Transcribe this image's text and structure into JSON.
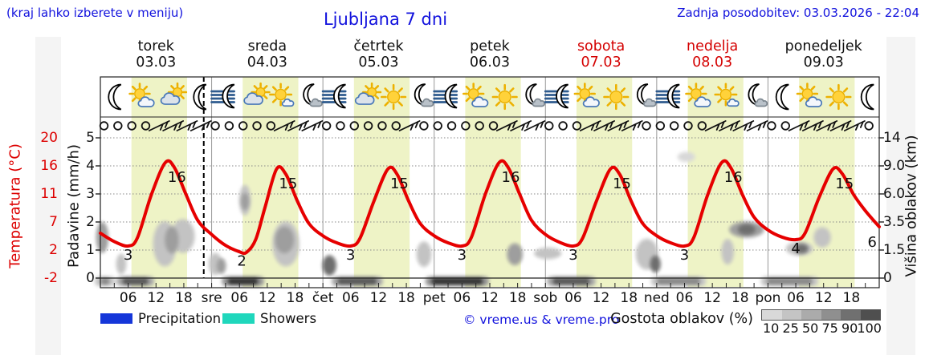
{
  "header": {
    "hint": "(kraj lahko izberete v meniju)",
    "title": "Ljubljana 7 dni",
    "updated": "Zadnja posodobitev: 03.03.2026 - 22:04"
  },
  "days": [
    {
      "name": "torek",
      "date": "03.03",
      "red": false,
      "icons": [
        "moon",
        "sun-cloud",
        "cloud-sun",
        "moon"
      ],
      "wind": "oooo////"
    },
    {
      "name": "sreda",
      "date": "04.03",
      "red": false,
      "icons": [
        "moon-fog",
        "cloud-sun",
        "sun-small-cloud",
        "moon-cloud"
      ],
      "wind": "ooooo///"
    },
    {
      "name": "četrtek",
      "date": "05.03",
      "red": false,
      "icons": [
        "moon-fog",
        "cloud-sun",
        "sun",
        "moon-cloud"
      ],
      "wind": "oooooo/o"
    },
    {
      "name": "petek",
      "date": "06.03",
      "red": false,
      "icons": [
        "moon-fog",
        "sun-cloud",
        "sun",
        "moon-cloud"
      ],
      "wind": "ooooo///"
    },
    {
      "name": "sobota",
      "date": "07.03",
      "red": true,
      "icons": [
        "moon-fog",
        "sun-cloud",
        "sun",
        "moon-cloud"
      ],
      "wind": "ooo////o"
    },
    {
      "name": "nedelja",
      "date": "08.03",
      "red": true,
      "icons": [
        "moon-fog",
        "sun-cloud",
        "sun-small-cloud",
        "moon-cloud"
      ],
      "wind": "oooo////"
    },
    {
      "name": "ponedeljek",
      "date": "09.03",
      "red": false,
      "icons": [
        "moon",
        "sun-cloud",
        "sun",
        "moon"
      ],
      "wind": "oo/////o"
    }
  ],
  "axes": {
    "temperature": {
      "title": "Temperatura (°C)",
      "ticks": [
        "20",
        "16",
        "11",
        "7",
        "2",
        "-2"
      ]
    },
    "precipitation": {
      "title": "Padavine (mm/h)",
      "ticks": [
        "5",
        "4",
        "3",
        "2",
        "1",
        "0"
      ]
    },
    "cloud_height": {
      "title": "Višina oblakov (km)",
      "ticks": [
        "14",
        "9.0",
        "6.0",
        "3.5",
        "1.5",
        "0"
      ]
    },
    "x": {
      "hour_labels": [
        "06",
        "12",
        "18"
      ],
      "day_labels": [
        "sre",
        "čet",
        "pet",
        "sob",
        "ned",
        "pon"
      ]
    }
  },
  "chart_data": {
    "type": "line",
    "title": "Ljubljana 7 dni",
    "x_unit": "hours from 03.03 00:00",
    "daylight_hours": [
      6.7,
      18.7
    ],
    "current_time_hour": 22.3,
    "temperature_series": {
      "name": "temperatura",
      "unit": "°C",
      "points": [
        [
          0,
          5
        ],
        [
          3,
          3.7
        ],
        [
          6,
          3
        ],
        [
          8,
          4.3
        ],
        [
          11,
          11
        ],
        [
          14,
          16
        ],
        [
          16,
          15.2
        ],
        [
          18.5,
          11
        ],
        [
          21,
          7
        ],
        [
          24,
          4.8
        ],
        [
          27,
          3.1
        ],
        [
          30,
          2.1
        ],
        [
          31.5,
          2
        ],
        [
          33.5,
          4
        ],
        [
          35.5,
          9
        ],
        [
          38,
          15
        ],
        [
          40,
          14.2
        ],
        [
          42.5,
          10
        ],
        [
          45,
          6.5
        ],
        [
          48,
          4.6
        ],
        [
          51,
          3.5
        ],
        [
          54,
          3
        ],
        [
          56,
          4.2
        ],
        [
          59,
          10
        ],
        [
          62,
          15
        ],
        [
          64,
          14.2
        ],
        [
          66.5,
          10
        ],
        [
          69,
          6.5
        ],
        [
          72,
          4.6
        ],
        [
          75,
          3.5
        ],
        [
          78,
          3
        ],
        [
          80,
          4.3
        ],
        [
          83,
          11
        ],
        [
          86,
          16
        ],
        [
          88,
          15.2
        ],
        [
          90.5,
          11
        ],
        [
          93,
          7
        ],
        [
          96,
          4.8
        ],
        [
          99,
          3.6
        ],
        [
          102,
          3
        ],
        [
          104,
          4.2
        ],
        [
          107,
          10
        ],
        [
          110,
          15
        ],
        [
          112,
          14.2
        ],
        [
          114.5,
          10
        ],
        [
          117,
          6.5
        ],
        [
          120,
          4.6
        ],
        [
          123,
          3.5
        ],
        [
          126,
          3
        ],
        [
          128,
          4.3
        ],
        [
          131,
          11
        ],
        [
          134,
          16
        ],
        [
          136,
          15.2
        ],
        [
          138.5,
          11
        ],
        [
          141,
          7.5
        ],
        [
          144,
          5.5
        ],
        [
          147,
          4.4
        ],
        [
          150,
          4
        ],
        [
          152,
          5
        ],
        [
          155,
          10.5
        ],
        [
          158,
          15
        ],
        [
          160,
          14.3
        ],
        [
          162.5,
          11
        ],
        [
          165,
          8.5
        ],
        [
          168,
          6
        ]
      ]
    },
    "point_labels": [
      {
        "h": 6,
        "value": "3",
        "kind": "min"
      },
      {
        "h": 14,
        "value": "16",
        "kind": "max"
      },
      {
        "h": 30.5,
        "value": "2",
        "kind": "min"
      },
      {
        "h": 38,
        "value": "15",
        "kind": "max"
      },
      {
        "h": 54,
        "value": "3",
        "kind": "min"
      },
      {
        "h": 62,
        "value": "15",
        "kind": "max"
      },
      {
        "h": 78,
        "value": "3",
        "kind": "min"
      },
      {
        "h": 86,
        "value": "16",
        "kind": "max"
      },
      {
        "h": 102,
        "value": "3",
        "kind": "min"
      },
      {
        "h": 110,
        "value": "15",
        "kind": "max"
      },
      {
        "h": 126,
        "value": "3",
        "kind": "min"
      },
      {
        "h": 134,
        "value": "16",
        "kind": "max"
      },
      {
        "h": 150,
        "value": "4",
        "kind": "min"
      },
      {
        "h": 158,
        "value": "15",
        "kind": "max"
      },
      {
        "h": 168,
        "value": "6",
        "kind": "end"
      }
    ],
    "clouds": [
      {
        "h": 0.4,
        "u": 1.45,
        "wh": 2.1,
        "uh": 1.0,
        "shade": "mid"
      },
      {
        "h": 4.5,
        "u": 0.5,
        "wh": 1.6,
        "uh": 0.62,
        "shade": "light"
      },
      {
        "h": 13.9,
        "u": 1.22,
        "wh": 4.5,
        "uh": 1.5,
        "shade": "light"
      },
      {
        "h": 17.8,
        "u": 1.5,
        "wh": 4.5,
        "uh": 1.1,
        "shade": "light"
      },
      {
        "h": 15.4,
        "u": 1.36,
        "wh": 2.4,
        "uh": 0.85,
        "shade": "mid"
      },
      {
        "h": 24.8,
        "u": 0.5,
        "wh": 2.3,
        "uh": 0.68,
        "shade": "light"
      },
      {
        "h": 26.1,
        "u": 0.43,
        "wh": 1.4,
        "uh": 0.45,
        "shade": "mid"
      },
      {
        "h": 31.2,
        "u": 2.78,
        "wh": 1.9,
        "uh": 0.97,
        "shade": "light"
      },
      {
        "h": 31.2,
        "u": 2.73,
        "wh": 1.2,
        "uh": 0.5,
        "shade": "mid"
      },
      {
        "h": 40.0,
        "u": 1.22,
        "wh": 5.2,
        "uh": 1.5,
        "shade": "light"
      },
      {
        "h": 39.7,
        "u": 1.36,
        "wh": 3.5,
        "uh": 0.85,
        "shade": "mid"
      },
      {
        "h": 49.4,
        "u": 0.45,
        "wh": 2.4,
        "uh": 0.62,
        "shade": "dark"
      },
      {
        "h": 69.8,
        "u": 0.85,
        "wh": 2.6,
        "uh": 0.8,
        "shade": "light"
      },
      {
        "h": 89.4,
        "u": 0.85,
        "wh": 2.8,
        "uh": 0.68,
        "shade": "mid"
      },
      {
        "h": 96.5,
        "u": 0.88,
        "wh": 5.2,
        "uh": 0.31,
        "shade": "light"
      },
      {
        "h": 117.9,
        "u": 0.85,
        "wh": 4.2,
        "uh": 1.0,
        "shade": "light"
      },
      {
        "h": 119.7,
        "u": 0.5,
        "wh": 1.7,
        "uh": 0.5,
        "shade": "dark"
      },
      {
        "h": 126.4,
        "u": 4.32,
        "wh": 3.1,
        "uh": 0.26,
        "shade": "vlight"
      },
      {
        "h": 139.4,
        "u": 1.73,
        "wh": 6.9,
        "uh": 0.48,
        "shade": "mid"
      },
      {
        "h": 139.4,
        "u": 1.73,
        "wh": 3.1,
        "uh": 0.28,
        "shade": "dark"
      },
      {
        "h": 135.3,
        "u": 0.94,
        "wh": 2.1,
        "uh": 0.8,
        "shade": "light"
      },
      {
        "h": 150.8,
        "u": 1.05,
        "wh": 5.2,
        "uh": 0.4,
        "shade": "light"
      },
      {
        "h": 151.2,
        "u": 1.05,
        "wh": 2.4,
        "uh": 0.26,
        "shade": "dark"
      },
      {
        "h": 155.7,
        "u": 1.45,
        "wh": 3.1,
        "uh": 0.62,
        "shade": "light"
      }
    ],
    "ground_fog": [
      {
        "h1": 0,
        "h2": 2,
        "shade": "mid"
      },
      {
        "h1": 4.7,
        "h2": 10.4,
        "shade": "dark"
      },
      {
        "h1": 27.4,
        "h2": 34.1,
        "shade": "vdark"
      },
      {
        "h1": 51.1,
        "h2": 59.7,
        "shade": "dark"
      },
      {
        "h1": 71.3,
        "h2": 82.6,
        "shade": "vdark"
      },
      {
        "h1": 97.5,
        "h2": 105.6,
        "shade": "dark"
      },
      {
        "h1": 120.0,
        "h2": 129.4,
        "shade": "mid"
      },
      {
        "h1": 143.7,
        "h2": 153.6,
        "shade": "mid"
      }
    ]
  },
  "legend": {
    "precipitation_label": "Precipitation",
    "showers_label": "Showers",
    "copyright": "© vreme.us & vreme.pro",
    "cloud_density_label": "Gostota oblakov (%)",
    "cloud_density_ticks": [
      "10",
      "25",
      "50",
      "75",
      "90",
      "100"
    ]
  },
  "colors": {
    "daylight_band": "#eef3c6",
    "temperature_curve": "#e60000",
    "temperature_axis": "#dd0000",
    "precipitation": "#1536d9",
    "showers": "#1fd7bc",
    "text_blue": "#1212dd",
    "weekend_red": "#d40000",
    "density_scale": [
      "#d9d9d9",
      "#c4c4c4",
      "#ababab",
      "#8f8f8f",
      "#707070",
      "#4f4f4f"
    ]
  }
}
